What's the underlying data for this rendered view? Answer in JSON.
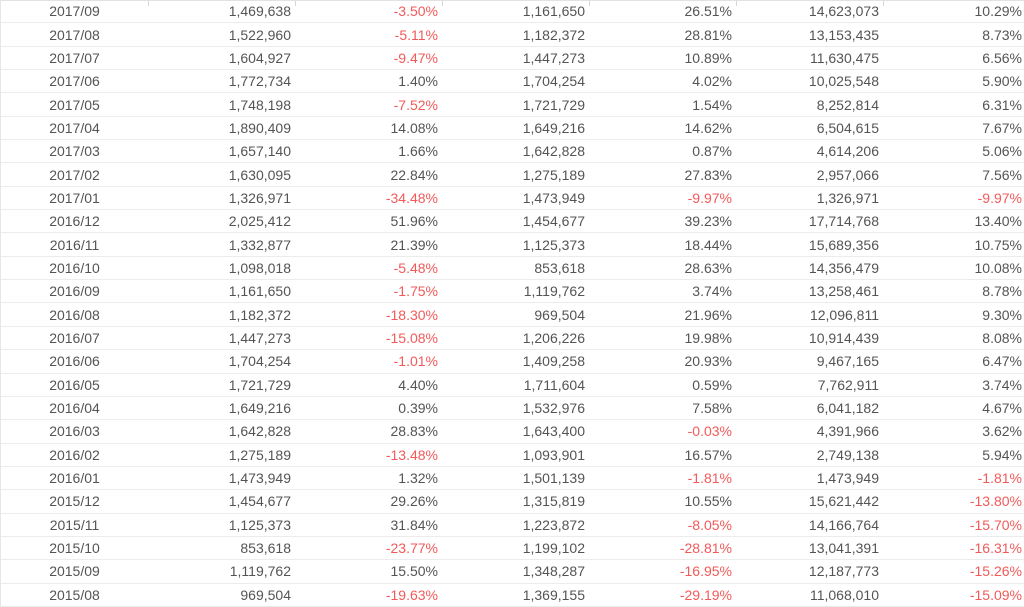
{
  "colors": {
    "negative_red": "#f25a5a",
    "text_gray": "#545454",
    "row_border": "#ececec",
    "header_tick": "#d6d6d6"
  },
  "table": {
    "rows": [
      {
        "month": "2017/09",
        "value1": "1,469,638",
        "pct1": "-3.50%",
        "value2": "1,161,650",
        "pct2": "26.51%",
        "value3": "14,623,073",
        "pct3": "10.29%"
      },
      {
        "month": "2017/08",
        "value1": "1,522,960",
        "pct1": "-5.11%",
        "value2": "1,182,372",
        "pct2": "28.81%",
        "value3": "13,153,435",
        "pct3": "8.73%"
      },
      {
        "month": "2017/07",
        "value1": "1,604,927",
        "pct1": "-9.47%",
        "value2": "1,447,273",
        "pct2": "10.89%",
        "value3": "11,630,475",
        "pct3": "6.56%"
      },
      {
        "month": "2017/06",
        "value1": "1,772,734",
        "pct1": "1.40%",
        "value2": "1,704,254",
        "pct2": "4.02%",
        "value3": "10,025,548",
        "pct3": "5.90%"
      },
      {
        "month": "2017/05",
        "value1": "1,748,198",
        "pct1": "-7.52%",
        "value2": "1,721,729",
        "pct2": "1.54%",
        "value3": "8,252,814",
        "pct3": "6.31%"
      },
      {
        "month": "2017/04",
        "value1": "1,890,409",
        "pct1": "14.08%",
        "value2": "1,649,216",
        "pct2": "14.62%",
        "value3": "6,504,615",
        "pct3": "7.67%"
      },
      {
        "month": "2017/03",
        "value1": "1,657,140",
        "pct1": "1.66%",
        "value2": "1,642,828",
        "pct2": "0.87%",
        "value3": "4,614,206",
        "pct3": "5.06%"
      },
      {
        "month": "2017/02",
        "value1": "1,630,095",
        "pct1": "22.84%",
        "value2": "1,275,189",
        "pct2": "27.83%",
        "value3": "2,957,066",
        "pct3": "7.56%"
      },
      {
        "month": "2017/01",
        "value1": "1,326,971",
        "pct1": "-34.48%",
        "value2": "1,473,949",
        "pct2": "-9.97%",
        "value3": "1,326,971",
        "pct3": "-9.97%"
      },
      {
        "month": "2016/12",
        "value1": "2,025,412",
        "pct1": "51.96%",
        "value2": "1,454,677",
        "pct2": "39.23%",
        "value3": "17,714,768",
        "pct3": "13.40%"
      },
      {
        "month": "2016/11",
        "value1": "1,332,877",
        "pct1": "21.39%",
        "value2": "1,125,373",
        "pct2": "18.44%",
        "value3": "15,689,356",
        "pct3": "10.75%"
      },
      {
        "month": "2016/10",
        "value1": "1,098,018",
        "pct1": "-5.48%",
        "value2": "853,618",
        "pct2": "28.63%",
        "value3": "14,356,479",
        "pct3": "10.08%"
      },
      {
        "month": "2016/09",
        "value1": "1,161,650",
        "pct1": "-1.75%",
        "value2": "1,119,762",
        "pct2": "3.74%",
        "value3": "13,258,461",
        "pct3": "8.78%"
      },
      {
        "month": "2016/08",
        "value1": "1,182,372",
        "pct1": "-18.30%",
        "value2": "969,504",
        "pct2": "21.96%",
        "value3": "12,096,811",
        "pct3": "9.30%"
      },
      {
        "month": "2016/07",
        "value1": "1,447,273",
        "pct1": "-15.08%",
        "value2": "1,206,226",
        "pct2": "19.98%",
        "value3": "10,914,439",
        "pct3": "8.08%"
      },
      {
        "month": "2016/06",
        "value1": "1,704,254",
        "pct1": "-1.01%",
        "value2": "1,409,258",
        "pct2": "20.93%",
        "value3": "9,467,165",
        "pct3": "6.47%"
      },
      {
        "month": "2016/05",
        "value1": "1,721,729",
        "pct1": "4.40%",
        "value2": "1,711,604",
        "pct2": "0.59%",
        "value3": "7,762,911",
        "pct3": "3.74%"
      },
      {
        "month": "2016/04",
        "value1": "1,649,216",
        "pct1": "0.39%",
        "value2": "1,532,976",
        "pct2": "7.58%",
        "value3": "6,041,182",
        "pct3": "4.67%"
      },
      {
        "month": "2016/03",
        "value1": "1,642,828",
        "pct1": "28.83%",
        "value2": "1,643,400",
        "pct2": "-0.03%",
        "value3": "4,391,966",
        "pct3": "3.62%"
      },
      {
        "month": "2016/02",
        "value1": "1,275,189",
        "pct1": "-13.48%",
        "value2": "1,093,901",
        "pct2": "16.57%",
        "value3": "2,749,138",
        "pct3": "5.94%"
      },
      {
        "month": "2016/01",
        "value1": "1,473,949",
        "pct1": "1.32%",
        "value2": "1,501,139",
        "pct2": "-1.81%",
        "value3": "1,473,949",
        "pct3": "-1.81%"
      },
      {
        "month": "2015/12",
        "value1": "1,454,677",
        "pct1": "29.26%",
        "value2": "1,315,819",
        "pct2": "10.55%",
        "value3": "15,621,442",
        "pct3": "-13.80%"
      },
      {
        "month": "2015/11",
        "value1": "1,125,373",
        "pct1": "31.84%",
        "value2": "1,223,872",
        "pct2": "-8.05%",
        "value3": "14,166,764",
        "pct3": "-15.70%"
      },
      {
        "month": "2015/10",
        "value1": "853,618",
        "pct1": "-23.77%",
        "value2": "1,199,102",
        "pct2": "-28.81%",
        "value3": "13,041,391",
        "pct3": "-16.31%"
      },
      {
        "month": "2015/09",
        "value1": "1,119,762",
        "pct1": "15.50%",
        "value2": "1,348,287",
        "pct2": "-16.95%",
        "value3": "12,187,773",
        "pct3": "-15.26%"
      },
      {
        "month": "2015/08",
        "value1": "969,504",
        "pct1": "-19.63%",
        "value2": "1,369,155",
        "pct2": "-29.19%",
        "value3": "11,068,010",
        "pct3": "-15.09%"
      }
    ]
  }
}
